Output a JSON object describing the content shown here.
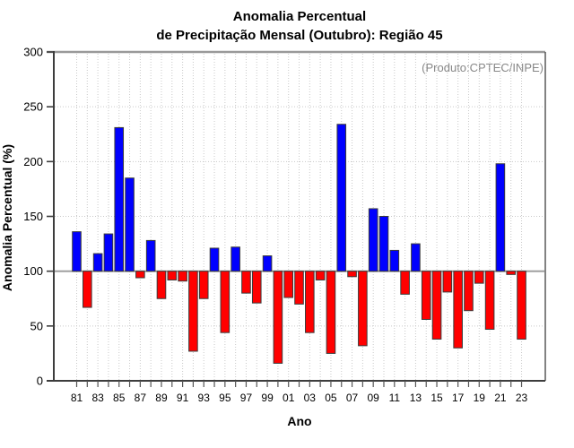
{
  "chart_data": {
    "type": "bar",
    "title_line1": "Anomalia Percentual",
    "title_line2": "de Precipitação Mensal (Outubro): Região 45",
    "annotation": "(Produto:CPTEC/INPE)",
    "xlabel": "Ano",
    "ylabel": "Anomalia Percentual (%)",
    "ylim": [
      0,
      300
    ],
    "yticks": [
      0,
      50,
      100,
      150,
      200,
      250,
      300
    ],
    "baseline": 100,
    "grid": "dotted",
    "legend": "none",
    "categories": [
      "81",
      "82",
      "83",
      "84",
      "85",
      "86",
      "87",
      "88",
      "89",
      "90",
      "91",
      "92",
      "93",
      "94",
      "95",
      "96",
      "97",
      "98",
      "99",
      "00",
      "01",
      "02",
      "03",
      "04",
      "05",
      "06",
      "07",
      "08",
      "09",
      "10",
      "11",
      "12",
      "13",
      "14",
      "15",
      "16",
      "17",
      "18",
      "19",
      "20",
      "21",
      "22",
      "23"
    ],
    "x_tick_labels": [
      "81",
      "83",
      "85",
      "87",
      "89",
      "91",
      "93",
      "95",
      "97",
      "99",
      "01",
      "03",
      "05",
      "07",
      "09",
      "11",
      "13",
      "15",
      "17",
      "19",
      "21",
      "23"
    ],
    "values": [
      136,
      67,
      116,
      134,
      231,
      185,
      94,
      128,
      75,
      92,
      91,
      27,
      75,
      121,
      44,
      122,
      80,
      71,
      114,
      16,
      76,
      70,
      44,
      92,
      25,
      234,
      95,
      32,
      157,
      150,
      119,
      79,
      125,
      56,
      38,
      81,
      30,
      64,
      89,
      47,
      198,
      97,
      38
    ],
    "colors": {
      "above_baseline": "#0000ff",
      "below_baseline": "#ff0000",
      "bar_outline": "#3b3b3b",
      "baseline_line": "#999999",
      "gridline": "#c9c9c9",
      "axis": "#3d3d3d",
      "box_top": "#999999",
      "annotation_text": "#878787"
    }
  }
}
